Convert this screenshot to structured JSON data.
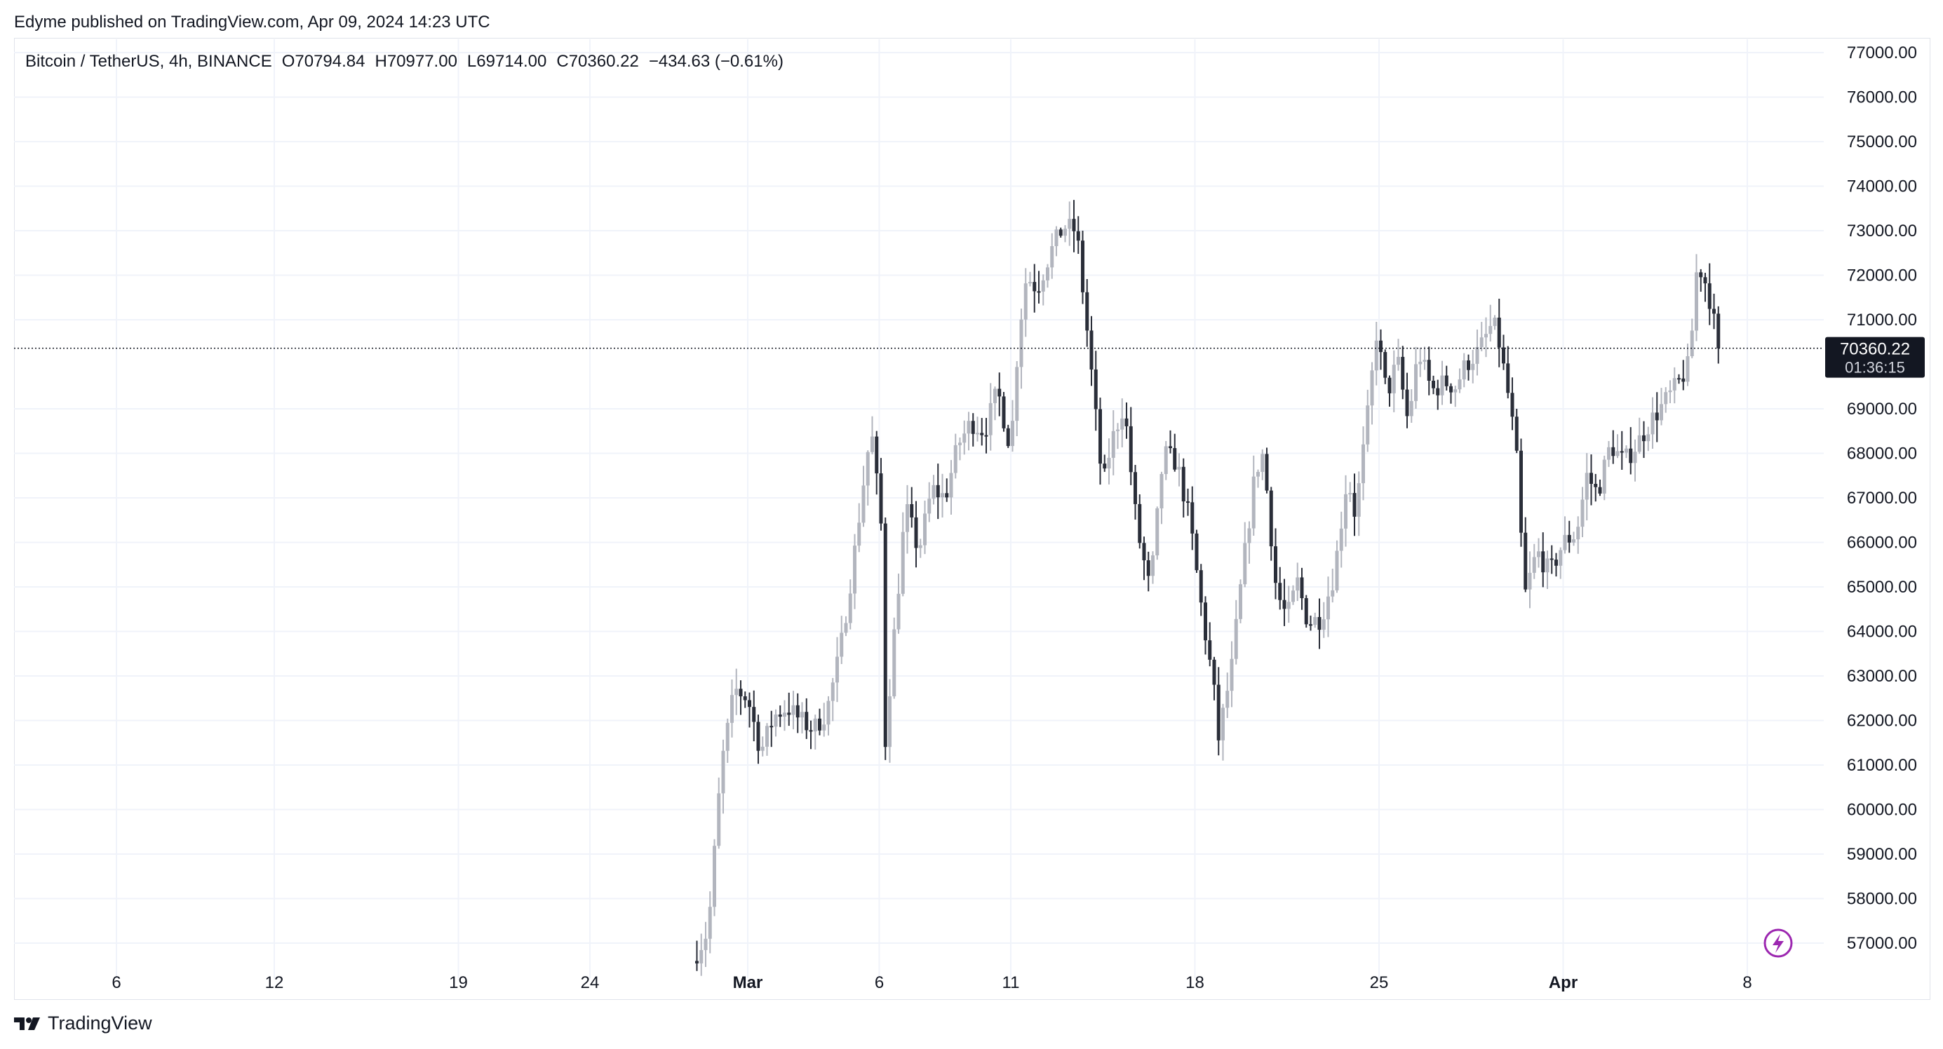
{
  "publisher_line": "Edyme published on TradingView.com, Apr 09, 2024 14:23 UTC",
  "legend": {
    "symbol": "Bitcoin / TetherUS, 4h, BINANCE",
    "open": "O70794.84",
    "high": "H70977.00",
    "low": "L69714.00",
    "close": "C70360.22",
    "change": "−434.63 (−0.61%)"
  },
  "footer": {
    "brand": "TradingView",
    "logo_icon": "tradingview-logo-icon"
  },
  "colors": {
    "up": "#b2b5be",
    "down": "#2a2e39",
    "grid": "#f0f3fa",
    "text": "#131722",
    "price_tag": "#131722"
  },
  "chart_data": {
    "type": "candlestick",
    "title": "Bitcoin / TetherUS, 4h, BINANCE",
    "ylim": [
      56300,
      77300
    ],
    "y_ticks": [
      "77000.00",
      "76000.00",
      "75000.00",
      "74000.00",
      "73000.00",
      "72000.00",
      "71000.00",
      "69000.00",
      "68000.00",
      "67000.00",
      "66000.00",
      "65000.00",
      "64000.00",
      "63000.00",
      "62000.00",
      "61000.00",
      "60000.00",
      "59000.00",
      "58000.00",
      "57000.00"
    ],
    "x_ticks": [
      {
        "label": "6",
        "day": 6,
        "bold": false
      },
      {
        "label": "12",
        "day": 12,
        "bold": false
      },
      {
        "label": "19",
        "day": 19,
        "bold": false
      },
      {
        "label": "24",
        "day": 24,
        "bold": false
      },
      {
        "label": "Mar",
        "day": 30,
        "bold": true
      },
      {
        "label": "6",
        "day": 35,
        "bold": false
      },
      {
        "label": "11",
        "day": 40,
        "bold": false
      },
      {
        "label": "18",
        "day": 47,
        "bold": false
      },
      {
        "label": "25",
        "day": 54,
        "bold": false
      },
      {
        "label": "Apr",
        "day": 61,
        "bold": true
      },
      {
        "label": "8",
        "day": 68,
        "bold": false
      }
    ],
    "current_price": "70360.22",
    "countdown": "01:36:15",
    "last_price_value": 70360.22,
    "path_points": [
      [
        27.9,
        56600
      ],
      [
        28.5,
        57300
      ],
      [
        29.0,
        61000
      ],
      [
        29.5,
        62700
      ],
      [
        30.0,
        62500
      ],
      [
        30.5,
        61300
      ],
      [
        31.0,
        62100
      ],
      [
        31.5,
        62300
      ],
      [
        32.0,
        62000
      ],
      [
        32.5,
        61800
      ],
      [
        33.0,
        62200
      ],
      [
        33.5,
        63500
      ],
      [
        34.0,
        65500
      ],
      [
        34.5,
        67800
      ],
      [
        34.7,
        68500
      ],
      [
        35.1,
        66200
      ],
      [
        35.2,
        61300
      ],
      [
        35.5,
        63500
      ],
      [
        36.0,
        66800
      ],
      [
        36.5,
        65800
      ],
      [
        37.0,
        67200
      ],
      [
        37.5,
        67000
      ],
      [
        38.0,
        68200
      ],
      [
        38.5,
        68700
      ],
      [
        39.0,
        68500
      ],
      [
        39.5,
        69400
      ],
      [
        40.0,
        68100
      ],
      [
        40.3,
        70700
      ],
      [
        40.6,
        72000
      ],
      [
        41.0,
        71700
      ],
      [
        41.5,
        72500
      ],
      [
        42.0,
        73100
      ],
      [
        42.5,
        73000
      ],
      [
        43.0,
        70200
      ],
      [
        43.5,
        67200
      ],
      [
        43.8,
        68200
      ],
      [
        44.3,
        69100
      ],
      [
        44.8,
        66300
      ],
      [
        45.3,
        64900
      ],
      [
        45.8,
        68000
      ],
      [
        46.3,
        67800
      ],
      [
        46.8,
        66500
      ],
      [
        47.3,
        64300
      ],
      [
        47.7,
        62800
      ],
      [
        47.9,
        61600
      ],
      [
        48.4,
        63200
      ],
      [
        48.8,
        65300
      ],
      [
        49.3,
        67600
      ],
      [
        49.6,
        68000
      ],
      [
        50.1,
        64900
      ],
      [
        50.5,
        64300
      ],
      [
        50.9,
        65100
      ],
      [
        51.3,
        64200
      ],
      [
        51.8,
        64300
      ],
      [
        52.3,
        65300
      ],
      [
        52.8,
        67500
      ],
      [
        53.1,
        66600
      ],
      [
        53.6,
        69000
      ],
      [
        53.9,
        70700
      ],
      [
        54.3,
        69300
      ],
      [
        54.7,
        70100
      ],
      [
        55.1,
        68700
      ],
      [
        55.5,
        70300
      ],
      [
        56.0,
        69400
      ],
      [
        56.5,
        69600
      ],
      [
        56.9,
        69500
      ],
      [
        57.3,
        70000
      ],
      [
        57.8,
        70300
      ],
      [
        58.3,
        70900
      ],
      [
        58.5,
        70700
      ],
      [
        59.0,
        69000
      ],
      [
        59.3,
        67500
      ],
      [
        59.5,
        64700
      ],
      [
        60.0,
        65800
      ],
      [
        60.5,
        65300
      ],
      [
        61.0,
        66000
      ],
      [
        61.5,
        66200
      ],
      [
        61.9,
        67500
      ],
      [
        62.3,
        67100
      ],
      [
        62.8,
        68200
      ],
      [
        63.3,
        67800
      ],
      [
        63.8,
        68200
      ],
      [
        64.3,
        68700
      ],
      [
        64.8,
        69100
      ],
      [
        65.3,
        69500
      ],
      [
        65.8,
        70000
      ],
      [
        66.1,
        72300
      ],
      [
        66.5,
        71700
      ],
      [
        66.9,
        70400
      ]
    ]
  }
}
